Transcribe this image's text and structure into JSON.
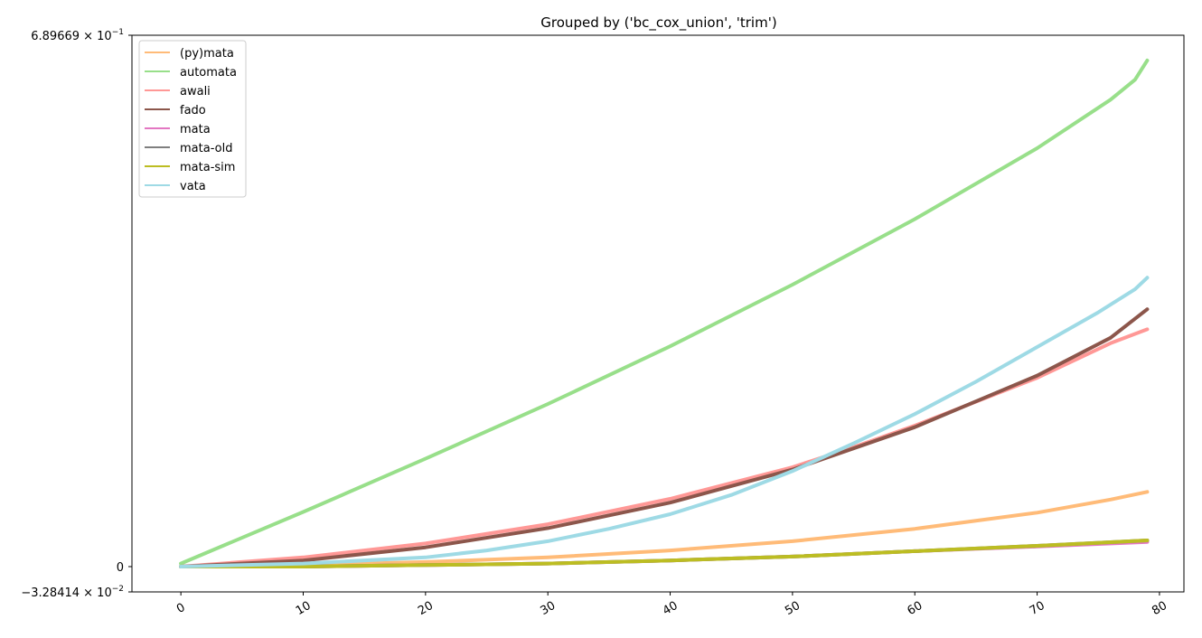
{
  "chart_data": {
    "type": "line",
    "title": "Grouped by ('bc_cox_union', 'trim')",
    "xlabel": "",
    "ylabel": "",
    "xlim": [
      -4,
      82
    ],
    "ylim": [
      -0.0328414,
      0.689669
    ],
    "x_ticks": [
      0,
      10,
      20,
      30,
      40,
      50,
      60,
      70,
      80
    ],
    "y_ticks": [
      {
        "value": 0.689669,
        "mantissa": "6.89669",
        "exp": "−1",
        "sign": ""
      },
      {
        "value": 0,
        "label": "0"
      },
      {
        "value": -0.0328414,
        "mantissa": "3.28414",
        "exp": "−2",
        "sign": "−"
      }
    ],
    "grid": false,
    "legend_position": "top-left",
    "series": [
      {
        "name": "(py)mata",
        "color": "#ffbb78",
        "x": [
          0,
          10,
          20,
          30,
          40,
          50,
          60,
          70,
          76,
          79
        ],
        "y": [
          0.0,
          0.002,
          0.006,
          0.012,
          0.021,
          0.033,
          0.049,
          0.07,
          0.087,
          0.097
        ]
      },
      {
        "name": "automata",
        "color": "#98df8a",
        "x": [
          0,
          10,
          20,
          30,
          40,
          50,
          60,
          70,
          76,
          78,
          79
        ],
        "y": [
          0.004,
          0.071,
          0.14,
          0.211,
          0.286,
          0.366,
          0.451,
          0.543,
          0.606,
          0.632,
          0.657
        ]
      },
      {
        "name": "awali",
        "color": "#ff9896",
        "x": [
          0,
          10,
          20,
          30,
          40,
          50,
          55,
          60,
          70,
          76,
          79
        ],
        "y": [
          0.0,
          0.012,
          0.03,
          0.055,
          0.088,
          0.129,
          0.155,
          0.183,
          0.245,
          0.29,
          0.308
        ]
      },
      {
        "name": "fado",
        "color": "#8c564b",
        "x": [
          0,
          10,
          20,
          30,
          40,
          50,
          60,
          70,
          76,
          79
        ],
        "y": [
          0.0,
          0.008,
          0.025,
          0.05,
          0.083,
          0.126,
          0.181,
          0.248,
          0.297,
          0.334
        ]
      },
      {
        "name": "mata",
        "color": "#e377c2",
        "x": [
          0,
          10,
          20,
          30,
          40,
          50,
          60,
          70,
          79
        ],
        "y": [
          0.0,
          0.0,
          0.002,
          0.004,
          0.008,
          0.013,
          0.02,
          0.026,
          0.032
        ]
      },
      {
        "name": "mata-old",
        "color": "#7f7f7f",
        "x": [
          0,
          10,
          20,
          30,
          40,
          50,
          60,
          70,
          79
        ],
        "y": [
          0.0,
          0.0,
          0.002,
          0.004,
          0.008,
          0.013,
          0.02,
          0.027,
          0.034
        ]
      },
      {
        "name": "mata-sim",
        "color": "#bcbd22",
        "x": [
          0,
          10,
          20,
          30,
          40,
          50,
          60,
          70,
          79
        ],
        "y": [
          0.0,
          0.0,
          0.002,
          0.004,
          0.008,
          0.013,
          0.02,
          0.027,
          0.034
        ]
      },
      {
        "name": "vata",
        "color": "#9edae5",
        "x": [
          0,
          10,
          20,
          25,
          30,
          35,
          40,
          45,
          50,
          55,
          60,
          65,
          70,
          75,
          78,
          79
        ],
        "y": [
          0.0,
          0.004,
          0.012,
          0.021,
          0.033,
          0.049,
          0.068,
          0.093,
          0.124,
          0.16,
          0.198,
          0.24,
          0.285,
          0.33,
          0.36,
          0.375
        ]
      }
    ]
  }
}
